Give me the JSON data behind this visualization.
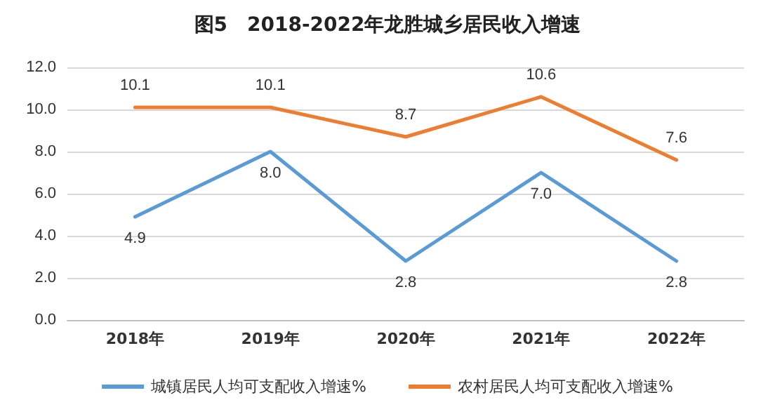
{
  "chart_data": {
    "type": "line",
    "title": "图5　2018-2022年龙胜城乡居民收入增速",
    "categories": [
      "2018年",
      "2019年",
      "2020年",
      "2021年",
      "2022年"
    ],
    "series": [
      {
        "name": "城镇居民人均可支配收入增速%",
        "color": "#5b9bd5",
        "values": [
          4.9,
          8.0,
          2.8,
          7.0,
          2.8
        ],
        "value_labels": [
          "4.9",
          "8.0",
          "2.8",
          "7.0",
          "2.8"
        ]
      },
      {
        "name": "农村居民人均可支配收入增速%",
        "color": "#ed7d31",
        "values": [
          10.1,
          10.1,
          8.7,
          10.6,
          7.6
        ],
        "value_labels": [
          "10.1",
          "10.1",
          "8.7",
          "10.6",
          "7.6"
        ]
      }
    ],
    "ylim": [
      0,
      12
    ],
    "yticks": [
      {
        "value": 0,
        "label": "0.0"
      },
      {
        "value": 2,
        "label": "2.0"
      },
      {
        "value": 4,
        "label": "4.0"
      },
      {
        "value": 6,
        "label": "6.0"
      },
      {
        "value": 8,
        "label": "8.0"
      },
      {
        "value": 10,
        "label": "10.0"
      },
      {
        "value": 12,
        "label": "12.0"
      }
    ],
    "grid": "y",
    "legend": "bottom",
    "marker": "none",
    "line_style": "solid"
  }
}
